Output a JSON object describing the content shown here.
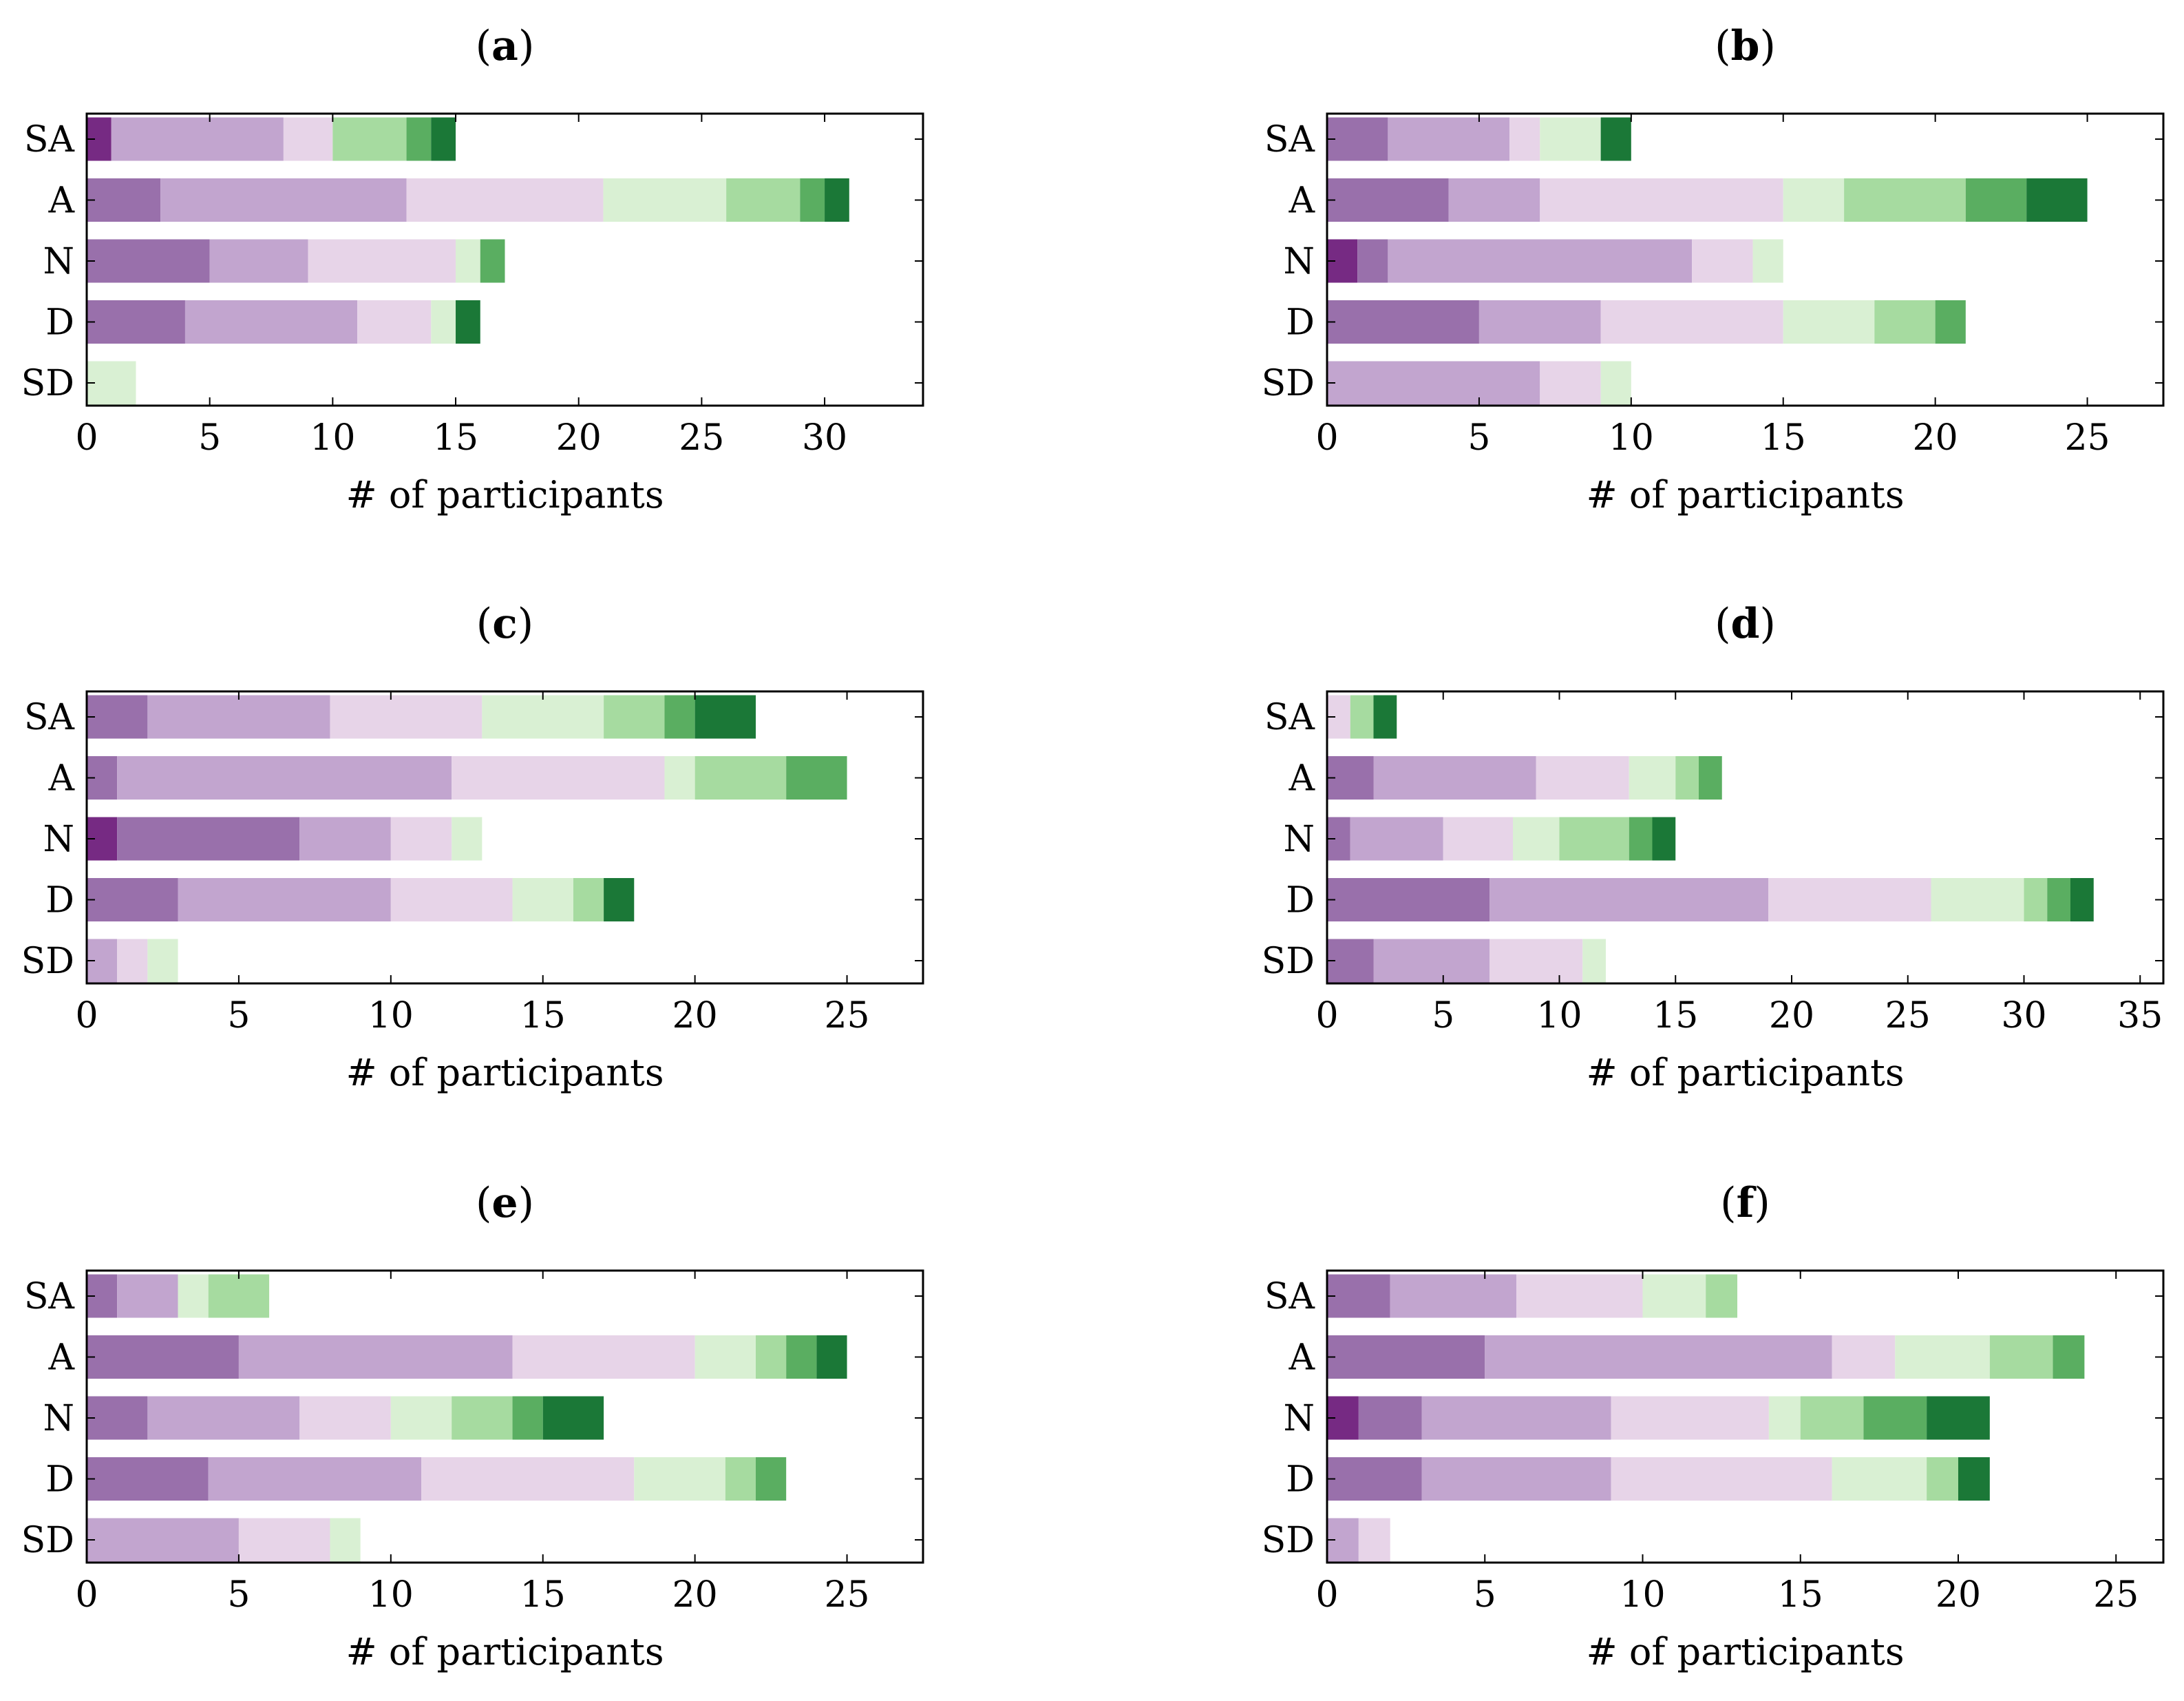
{
  "figure": {
    "xlabel": "# of participants",
    "colors": [
      "#762a83",
      "#9970ab",
      "#c2a5cf",
      "#e7d4e8",
      "#d9f0d3",
      "#a6dba0",
      "#5aae61",
      "#1b7837"
    ]
  },
  "chart_data": [
    {
      "type": "bar",
      "orientation": "horizontal",
      "stacked": true,
      "panel": "a",
      "categories": [
        "SA",
        "A",
        "N",
        "D",
        "SD"
      ],
      "xlabel": "# of participants",
      "xlim": [
        0,
        34
      ],
      "xticks": [
        0,
        5,
        10,
        15,
        20,
        25,
        30
      ],
      "segments": [
        [
          1,
          0,
          7,
          2,
          0,
          3,
          1,
          1
        ],
        [
          0,
          3,
          10,
          8,
          5,
          3,
          1,
          1
        ],
        [
          0,
          5,
          4,
          6,
          1,
          0,
          1,
          0
        ],
        [
          0,
          4,
          7,
          3,
          1,
          0,
          0,
          1
        ],
        [
          0,
          0,
          0,
          0,
          2,
          0,
          0,
          0
        ]
      ]
    },
    {
      "type": "bar",
      "orientation": "horizontal",
      "stacked": true,
      "panel": "b",
      "categories": [
        "SA",
        "A",
        "N",
        "D",
        "SD"
      ],
      "xlabel": "# of participants",
      "xlim": [
        0,
        27.5
      ],
      "xticks": [
        0,
        5,
        10,
        15,
        20,
        25
      ],
      "segments": [
        [
          0,
          2,
          4,
          1,
          2,
          0,
          0,
          1
        ],
        [
          0,
          4,
          3,
          8,
          2,
          4,
          2,
          2
        ],
        [
          1,
          1,
          10,
          2,
          1,
          0,
          0,
          0
        ],
        [
          0,
          5,
          4,
          6,
          3,
          2,
          1,
          0
        ],
        [
          0,
          0,
          7,
          2,
          1,
          0,
          0,
          0
        ]
      ]
    },
    {
      "type": "bar",
      "orientation": "horizontal",
      "stacked": true,
      "panel": "c",
      "categories": [
        "SA",
        "A",
        "N",
        "D",
        "SD"
      ],
      "xlabel": "# of participants",
      "xlim": [
        0,
        27.5
      ],
      "xticks": [
        0,
        5,
        10,
        15,
        20,
        25
      ],
      "segments": [
        [
          0,
          2,
          6,
          5,
          4,
          2,
          1,
          2
        ],
        [
          0,
          1,
          11,
          7,
          1,
          3,
          2,
          0
        ],
        [
          1,
          6,
          3,
          2,
          1,
          0,
          0,
          0
        ],
        [
          0,
          3,
          7,
          4,
          2,
          1,
          0,
          1
        ],
        [
          0,
          0,
          1,
          1,
          1,
          0,
          0,
          0
        ]
      ]
    },
    {
      "type": "bar",
      "orientation": "horizontal",
      "stacked": true,
      "panel": "d",
      "categories": [
        "SA",
        "A",
        "N",
        "D",
        "SD"
      ],
      "xlabel": "# of participants",
      "xlim": [
        0,
        36
      ],
      "xticks": [
        0,
        5,
        10,
        15,
        20,
        25,
        30,
        35
      ],
      "segments": [
        [
          0,
          0,
          0,
          1,
          0,
          1,
          0,
          1
        ],
        [
          0,
          2,
          7,
          4,
          2,
          1,
          1,
          0
        ],
        [
          0,
          1,
          4,
          3,
          2,
          3,
          1,
          1
        ],
        [
          0,
          7,
          12,
          7,
          4,
          1,
          1,
          1
        ],
        [
          0,
          2,
          5,
          4,
          1,
          0,
          0,
          0
        ]
      ]
    },
    {
      "type": "bar",
      "orientation": "horizontal",
      "stacked": true,
      "panel": "e",
      "categories": [
        "SA",
        "A",
        "N",
        "D",
        "SD"
      ],
      "xlabel": "# of participants",
      "xlim": [
        0,
        27.5
      ],
      "xticks": [
        0,
        5,
        10,
        15,
        20,
        25
      ],
      "segments": [
        [
          0,
          1,
          2,
          0,
          1,
          2,
          0,
          0
        ],
        [
          0,
          5,
          9,
          6,
          2,
          1,
          1,
          1
        ],
        [
          0,
          2,
          5,
          3,
          2,
          2,
          1,
          2
        ],
        [
          0,
          4,
          7,
          7,
          3,
          1,
          1,
          0
        ],
        [
          0,
          0,
          5,
          3,
          1,
          0,
          0,
          0
        ]
      ]
    },
    {
      "type": "bar",
      "orientation": "horizontal",
      "stacked": true,
      "panel": "f",
      "categories": [
        "SA",
        "A",
        "N",
        "D",
        "SD"
      ],
      "xlabel": "# of participants",
      "xlim": [
        0,
        26.5
      ],
      "xticks": [
        0,
        5,
        10,
        15,
        20,
        25
      ],
      "segments": [
        [
          0,
          2,
          4,
          4,
          2,
          1,
          0,
          0
        ],
        [
          0,
          5,
          11,
          2,
          3,
          2,
          1,
          0
        ],
        [
          1,
          2,
          6,
          5,
          1,
          2,
          2,
          2
        ],
        [
          0,
          3,
          6,
          7,
          3,
          1,
          0,
          1
        ],
        [
          0,
          0,
          1,
          1,
          0,
          0,
          0,
          0
        ]
      ]
    }
  ]
}
